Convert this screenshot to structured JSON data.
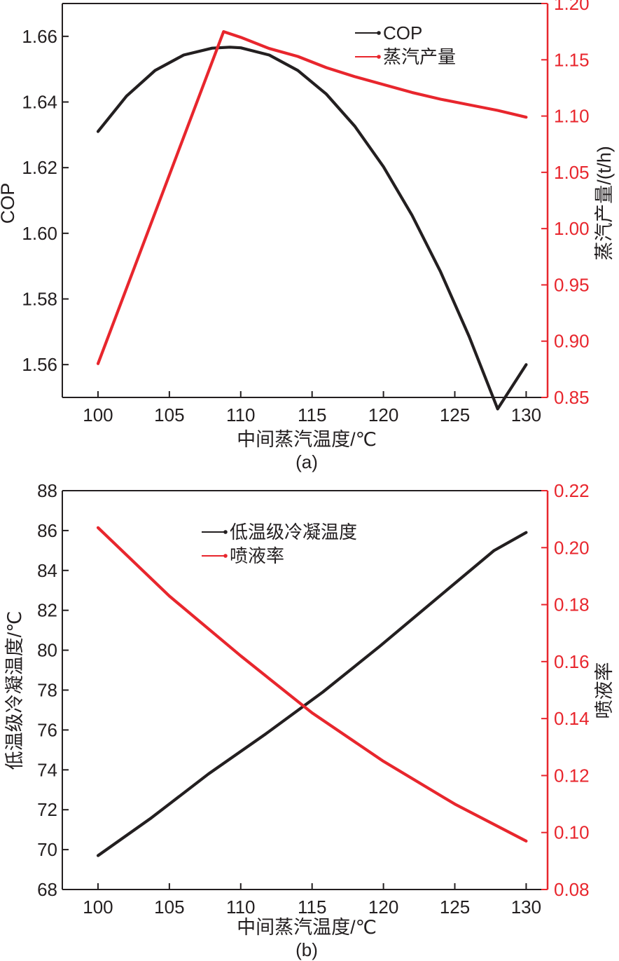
{
  "colors": {
    "cop": "#231f20",
    "steam": "#e8262d",
    "axis_left": "#231f20",
    "axis_right": "#e8262d"
  },
  "chart_data": [
    {
      "panel_label": "(a)",
      "type": "line",
      "xlabel": "中间蒸汽温度/℃",
      "ylabel": "COP",
      "y2label": "蒸汽产量/(t/h)",
      "xlim": [
        97.5,
        131.5
      ],
      "ylim": [
        1.55,
        1.67
      ],
      "y2lim": [
        0.85,
        1.2
      ],
      "xticks": [
        100,
        105,
        110,
        115,
        120,
        125,
        130
      ],
      "yticks": [
        "1.56",
        "1.58",
        "1.60",
        "1.62",
        "1.64",
        "1.66"
      ],
      "y2ticks": [
        "0.85",
        "0.90",
        "0.95",
        "1.00",
        "1.05",
        "1.10",
        "1.15",
        "1.20"
      ],
      "legend": "top-right",
      "series": [
        {
          "name": "COP",
          "axis": "left",
          "color": "#231f20",
          "x": [
            100,
            102,
            104,
            106,
            108,
            109.25,
            110,
            112,
            114,
            116,
            118,
            120,
            122,
            124,
            126,
            128,
            130
          ],
          "y": [
            1.631,
            1.6418,
            1.6496,
            1.6543,
            1.6564,
            1.6567,
            1.6565,
            1.6543,
            1.6496,
            1.6424,
            1.6326,
            1.6203,
            1.6055,
            1.5883,
            1.5686,
            1.5465,
            1.56
          ]
        },
        {
          "name": "蒸汽产量",
          "axis": "right",
          "color": "#e8262d",
          "x": [
            100,
            108.8,
            110,
            112,
            114,
            116,
            118,
            120,
            122,
            124,
            126,
            128,
            130
          ],
          "y": [
            0.88,
            1.175,
            1.17,
            1.16,
            1.153,
            1.143,
            1.135,
            1.128,
            1.121,
            1.115,
            1.11,
            1.105,
            1.099
          ]
        }
      ]
    },
    {
      "panel_label": "(b)",
      "type": "line",
      "xlabel": "中间蒸汽温度/℃",
      "ylabel": "低温级冷凝温度/℃",
      "y2label": "喷液率",
      "xlim": [
        97.5,
        131.5
      ],
      "ylim": [
        68,
        88
      ],
      "y2lim": [
        0.08,
        0.22
      ],
      "xticks": [
        100,
        105,
        110,
        115,
        120,
        125,
        130
      ],
      "yticks": [
        "68",
        "70",
        "72",
        "74",
        "76",
        "78",
        "80",
        "82",
        "84",
        "86",
        "88"
      ],
      "y2ticks": [
        "0.08",
        "0.10",
        "0.12",
        "0.14",
        "0.16",
        "0.18",
        "0.20",
        "0.22"
      ],
      "legend": "top-center",
      "series": [
        {
          "name": "低温级冷凝温度",
          "axis": "left",
          "color": "#231f20",
          "x": [
            100,
            103.75,
            107.75,
            111.75,
            115.75,
            119.75,
            123.75,
            127.75,
            130
          ],
          "y": [
            69.7,
            71.6,
            73.8,
            75.8,
            77.9,
            80.2,
            82.6,
            85.0,
            85.9
          ]
        },
        {
          "name": "喷液率",
          "axis": "right",
          "color": "#e8262d",
          "x": [
            100,
            105,
            110,
            115,
            120,
            125,
            130
          ],
          "y": [
            0.207,
            0.183,
            0.162,
            0.142,
            0.125,
            0.11,
            0.097
          ]
        }
      ]
    }
  ]
}
